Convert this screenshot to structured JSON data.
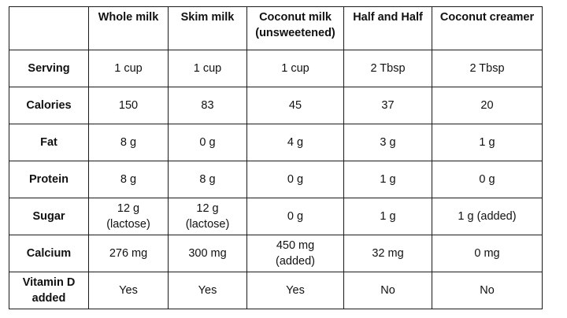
{
  "table": {
    "headers": [
      "",
      "Whole milk",
      "Skim milk",
      "Coconut milk\n(unsweetened)",
      "Half and Half",
      "Coconut creamer"
    ],
    "rows": [
      {
        "label": "Serving",
        "cells": [
          "1 cup",
          "1 cup",
          "1 cup",
          "2 Tbsp",
          "2 Tbsp"
        ]
      },
      {
        "label": "Calories",
        "cells": [
          "150",
          "83",
          "45",
          "37",
          "20"
        ]
      },
      {
        "label": "Fat",
        "cells": [
          "8 g",
          "0 g",
          "4 g",
          "3 g",
          "1 g"
        ]
      },
      {
        "label": "Protein",
        "cells": [
          "8 g",
          "8 g",
          "0 g",
          "1 g",
          "0 g"
        ]
      },
      {
        "label": "Sugar",
        "cells": [
          "12 g\n(lactose)",
          "12 g\n(lactose)",
          "0 g",
          "1 g",
          "1 g (added)"
        ]
      },
      {
        "label": "Calcium",
        "cells": [
          "276 mg",
          "300 mg",
          "450 mg\n(added)",
          "32 mg",
          "0 mg"
        ]
      },
      {
        "label": "Vitamin D\nadded",
        "cells": [
          "Yes",
          "Yes",
          "Yes",
          "No",
          "No"
        ]
      }
    ]
  }
}
